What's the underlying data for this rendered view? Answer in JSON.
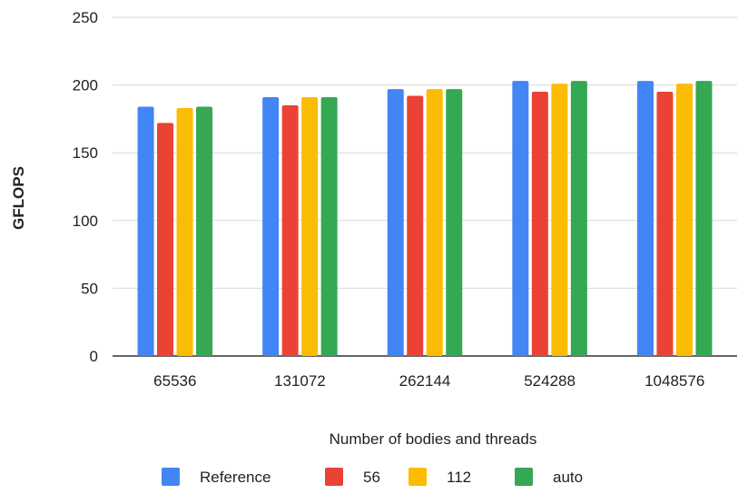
{
  "chart_data": {
    "type": "bar",
    "title": "",
    "xlabel": "Number of bodies and threads",
    "ylabel": "GFLOPS",
    "ylim": [
      0,
      250
    ],
    "yticks": [
      0,
      50,
      100,
      150,
      200,
      250
    ],
    "grid": true,
    "legend_position": "bottom",
    "categories": [
      "65536",
      "131072",
      "262144",
      "524288",
      "1048576"
    ],
    "series": [
      {
        "name": "Reference",
        "color": "#4285F4",
        "values": [
          184,
          191,
          197,
          203,
          203
        ]
      },
      {
        "name": "56",
        "color": "#EA4335",
        "values": [
          172,
          185,
          192,
          195,
          195
        ]
      },
      {
        "name": "112",
        "color": "#FBBC04",
        "values": [
          183,
          191,
          197,
          201,
          201
        ]
      },
      {
        "name": "auto",
        "color": "#34A853",
        "values": [
          184,
          191,
          197,
          203,
          203
        ]
      }
    ]
  }
}
